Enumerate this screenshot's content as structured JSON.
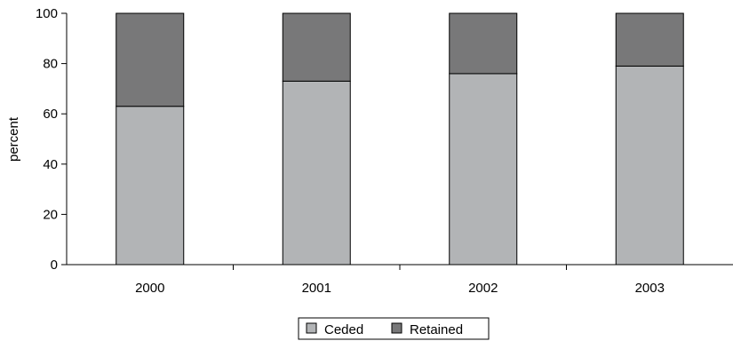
{
  "chart_data": {
    "type": "bar",
    "stacked": true,
    "categories": [
      "2000",
      "2001",
      "2002",
      "2003"
    ],
    "series": [
      {
        "name": "Ceded",
        "values": [
          63,
          73,
          76,
          79
        ],
        "color": "#b2b4b6"
      },
      {
        "name": "Retained",
        "values": [
          37,
          27,
          24,
          21
        ],
        "color": "#787879"
      }
    ],
    "ylabel": "percent",
    "ylim": [
      0,
      100
    ],
    "yticks": [
      0,
      20,
      40,
      60,
      80,
      100
    ],
    "grid": false,
    "legend": "bottom-center"
  }
}
